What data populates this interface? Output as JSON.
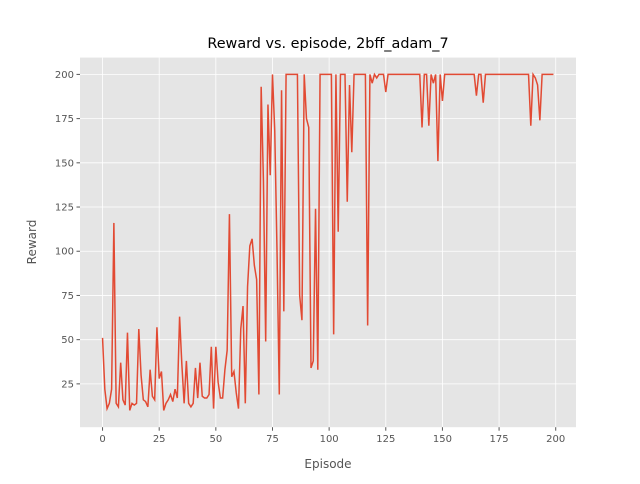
{
  "chart_data": {
    "type": "line",
    "title": "Reward vs. episode, 2bff_adam_7",
    "x_label": "Episode",
    "y_label": "Reward",
    "x": [
      0,
      1,
      2,
      3,
      4,
      5,
      6,
      7,
      8,
      9,
      10,
      11,
      12,
      13,
      14,
      15,
      16,
      17,
      18,
      19,
      20,
      21,
      22,
      23,
      24,
      25,
      26,
      27,
      28,
      29,
      30,
      31,
      32,
      33,
      34,
      35,
      36,
      37,
      38,
      39,
      40,
      41,
      42,
      43,
      44,
      45,
      46,
      47,
      48,
      49,
      50,
      51,
      52,
      53,
      54,
      55,
      56,
      57,
      58,
      59,
      60,
      61,
      62,
      63,
      64,
      65,
      66,
      67,
      68,
      69,
      70,
      71,
      72,
      73,
      74,
      75,
      76,
      77,
      78,
      79,
      80,
      81,
      82,
      83,
      84,
      85,
      86,
      87,
      88,
      89,
      90,
      91,
      92,
      93,
      94,
      95,
      96,
      97,
      98,
      99,
      100,
      101,
      102,
      103,
      104,
      105,
      106,
      107,
      108,
      109,
      110,
      111,
      112,
      113,
      114,
      115,
      116,
      117,
      118,
      119,
      120,
      121,
      122,
      123,
      124,
      125,
      126,
      127,
      128,
      129,
      130,
      131,
      132,
      133,
      134,
      135,
      136,
      137,
      138,
      139,
      140,
      141,
      142,
      143,
      144,
      145,
      146,
      147,
      148,
      149,
      150,
      151,
      152,
      153,
      154,
      155,
      156,
      157,
      158,
      159,
      160,
      161,
      162,
      163,
      164,
      165,
      166,
      167,
      168,
      169,
      170,
      171,
      172,
      173,
      174,
      175,
      176,
      177,
      178,
      179,
      180,
      181,
      182,
      183,
      184,
      185,
      186,
      187,
      188,
      189,
      190,
      191,
      192,
      193,
      194,
      195,
      196,
      197,
      198,
      199
    ],
    "series": [
      {
        "color": "#E24A33",
        "values": [
          51,
          22,
          11,
          14,
          22,
          116,
          14,
          12,
          37,
          16,
          13,
          54,
          10,
          14,
          13,
          14,
          56,
          30,
          16,
          15,
          12,
          33,
          18,
          16,
          57,
          28,
          32,
          10,
          14,
          16,
          19,
          15,
          22,
          17,
          63,
          36,
          14,
          38,
          14,
          12,
          14,
          34,
          17,
          37,
          18,
          17,
          17,
          19,
          46,
          11,
          46,
          26,
          17,
          17,
          33,
          44,
          121,
          29,
          32,
          20,
          11,
          56,
          69,
          14,
          80,
          103,
          107,
          92,
          84,
          19,
          193,
          140,
          49,
          183,
          143,
          200,
          168,
          100,
          19,
          191,
          66,
          200,
          200,
          200,
          200,
          200,
          200,
          75,
          61,
          200,
          175,
          170,
          34,
          38,
          124,
          33,
          200,
          200,
          200,
          200,
          200,
          200,
          53,
          200,
          111,
          200,
          200,
          200,
          128,
          194,
          156,
          200,
          200,
          200,
          200,
          200,
          200,
          58,
          200,
          195,
          200,
          198,
          200,
          200,
          200,
          190,
          200,
          200,
          200,
          200,
          200,
          200,
          200,
          200,
          200,
          200,
          200,
          200,
          200,
          200,
          200,
          170,
          200,
          200,
          171,
          200,
          195,
          200,
          151,
          200,
          185,
          200,
          200,
          200,
          200,
          200,
          200,
          200,
          200,
          200,
          200,
          200,
          200,
          200,
          200,
          188,
          200,
          200,
          184,
          200,
          200,
          200,
          200,
          200,
          200,
          200,
          200,
          200,
          200,
          200,
          200,
          200,
          200,
          200,
          200,
          200,
          200,
          200,
          200,
          171,
          200,
          198,
          194,
          174,
          200,
          200,
          200,
          200,
          200,
          200
        ]
      }
    ],
    "xlim": [
      -9.95,
      208.95
    ],
    "ylim": [
      0.5,
      209.5
    ],
    "xticks": [
      0,
      25,
      50,
      75,
      100,
      125,
      150,
      175,
      200
    ],
    "yticks": [
      25,
      50,
      75,
      100,
      125,
      150,
      175,
      200
    ],
    "grid": true,
    "background": "#E5E5E5"
  }
}
